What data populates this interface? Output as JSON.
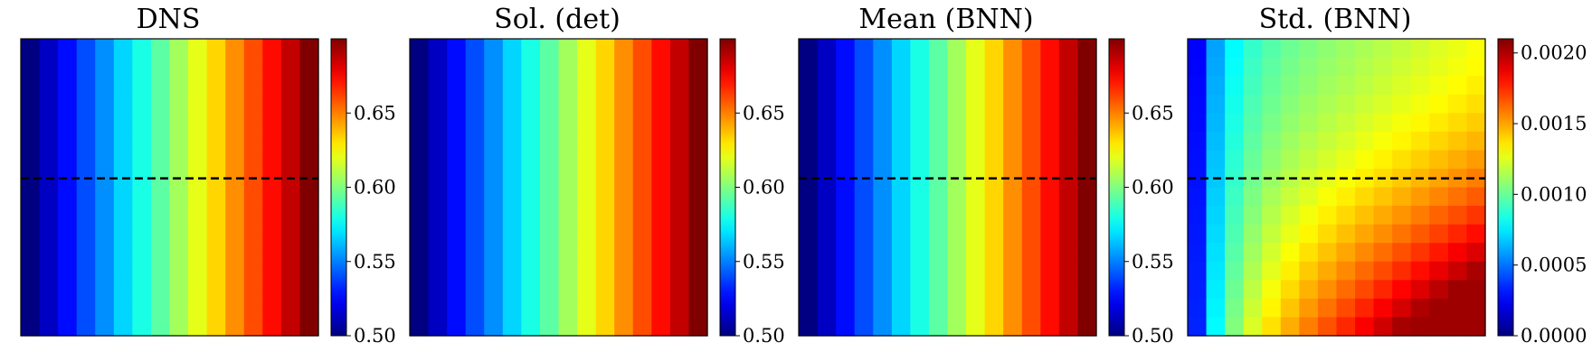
{
  "chart_data": [
    {
      "type": "heatmap",
      "title": "DNS",
      "grid": {
        "rows": 16,
        "cols": 16
      },
      "column_values": [
        0.5,
        0.513,
        0.527,
        0.54,
        0.553,
        0.567,
        0.58,
        0.593,
        0.607,
        0.62,
        0.633,
        0.647,
        0.66,
        0.673,
        0.687,
        0.7
      ],
      "row_profile": "uniform",
      "dashed_line_row_fraction": 0.47,
      "colorbar": {
        "range": [
          0.5,
          0.7
        ],
        "ticks": [
          "0.50",
          "0.55",
          "0.60",
          "0.65"
        ],
        "tick_values": [
          0.5,
          0.55,
          0.6,
          0.65
        ]
      }
    },
    {
      "type": "heatmap",
      "title": "Sol. (det)",
      "grid": {
        "rows": 16,
        "cols": 16
      },
      "column_values": [
        0.5,
        0.513,
        0.527,
        0.54,
        0.553,
        0.567,
        0.58,
        0.593,
        0.607,
        0.62,
        0.633,
        0.647,
        0.66,
        0.673,
        0.687,
        0.7
      ],
      "row_profile": "uniform",
      "colorbar": {
        "range": [
          0.5,
          0.7
        ],
        "ticks": [
          "0.50",
          "0.55",
          "0.60",
          "0.65"
        ],
        "tick_values": [
          0.5,
          0.55,
          0.6,
          0.65
        ]
      }
    },
    {
      "type": "heatmap",
      "title": "Mean (BNN)",
      "grid": {
        "rows": 16,
        "cols": 16
      },
      "column_values": [
        0.5,
        0.513,
        0.527,
        0.54,
        0.553,
        0.567,
        0.58,
        0.593,
        0.607,
        0.62,
        0.633,
        0.647,
        0.66,
        0.673,
        0.687,
        0.7
      ],
      "row_profile": "uniform",
      "dashed_line_row_fraction": 0.47,
      "colorbar": {
        "range": [
          0.5,
          0.7
        ],
        "ticks": [
          "0.50",
          "0.55",
          "0.60",
          "0.65"
        ],
        "tick_values": [
          0.5,
          0.55,
          0.6,
          0.65
        ]
      }
    },
    {
      "type": "heatmap",
      "title": "Std. (BNN)",
      "grid": {
        "rows": 16,
        "cols": 16
      },
      "row_profile": "field",
      "dashed_line_row_fraction": 0.47,
      "colorbar": {
        "range": [
          0.0,
          0.0021
        ],
        "ticks": [
          "0.0000",
          "0.0005",
          "0.0010",
          "0.0015",
          "0.0020"
        ],
        "tick_values": [
          0.0,
          0.0005,
          0.001,
          0.0015,
          0.002
        ]
      }
    }
  ]
}
